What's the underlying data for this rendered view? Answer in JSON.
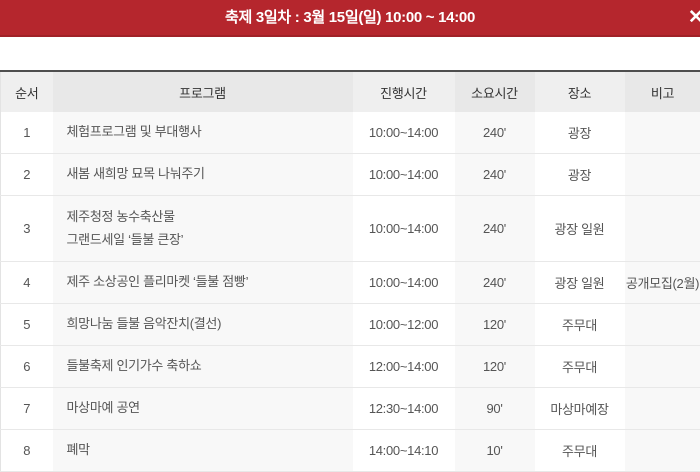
{
  "banner": {
    "title": "축제 3일차 : 3월 15일(일) 10:00 ~ 14:00",
    "close_glyph": "✕",
    "bg_color": "#b5262d"
  },
  "table": {
    "columns": [
      {
        "key": "no",
        "label": "순서"
      },
      {
        "key": "program",
        "label": "프로그램"
      },
      {
        "key": "time",
        "label": "진행시간"
      },
      {
        "key": "duration",
        "label": "소요시간"
      },
      {
        "key": "place",
        "label": "장소"
      },
      {
        "key": "note",
        "label": "비고"
      }
    ],
    "rows": [
      {
        "no": "1",
        "program": "체험프로그램 및 부대행사",
        "time": "10:00~14:00",
        "duration": "240'",
        "place": "광장",
        "note": ""
      },
      {
        "no": "2",
        "program": "새봄 새희망 묘목 나눠주기",
        "time": "10:00~14:00",
        "duration": "240'",
        "place": "광장",
        "note": ""
      },
      {
        "no": "3",
        "program": "제주청정 농수축산물\n그랜드세일 ‘들불 큰장’",
        "time": "10:00~14:00",
        "duration": "240'",
        "place": "광장 일원",
        "note": ""
      },
      {
        "no": "4",
        "program": "제주 소상공인 플리마켓 ‘들불 점빵’",
        "time": "10:00~14:00",
        "duration": "240'",
        "place": "광장 일원",
        "note": "공개모집(2월)"
      },
      {
        "no": "5",
        "program": "희망나눔 들불 음악잔치(결선)",
        "time": "10:00~12:00",
        "duration": "120'",
        "place": "주무대",
        "note": ""
      },
      {
        "no": "6",
        "program": "들불축제 인기가수 축하쇼",
        "time": "12:00~14:00",
        "duration": "120'",
        "place": "주무대",
        "note": ""
      },
      {
        "no": "7",
        "program": "마상마예 공연",
        "time": "12:30~14:00",
        "duration": "90'",
        "place": "마상마예장",
        "note": ""
      },
      {
        "no": "8",
        "program": "폐막",
        "time": "14:00~14:10",
        "duration": "10'",
        "place": "주무대",
        "note": ""
      }
    ]
  }
}
